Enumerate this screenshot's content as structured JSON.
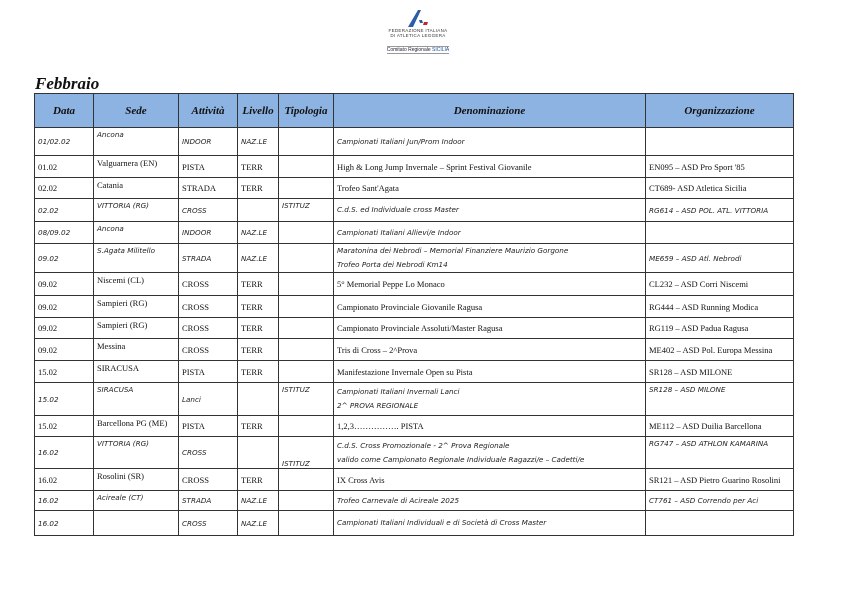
{
  "logo": {
    "line1": "FEDERAZIONE ITALIANA",
    "line2": "DI ATLETICA LEGGERA",
    "line3a": "Comitato Regionale",
    "line3b": "SICILIA"
  },
  "month": "Febbraio",
  "table": {
    "headers": [
      "Data",
      "Sede",
      "Attività",
      "Livello",
      "Tipologia",
      "Denominazione",
      "Organizzazione"
    ],
    "header_color": "#8db3e2",
    "rows": [
      {
        "italic": true,
        "data": "01/02.02",
        "sede": "Ancona",
        "attivita": "INDOOR",
        "livello": "NAZ.LE",
        "tipologia": "",
        "denominazione": [
          "Campionati Italiani Jun/Prom Indoor"
        ],
        "organizzazione": ""
      },
      {
        "italic": false,
        "data": "01.02",
        "sede": "Valguarnera (EN)",
        "attivita": "PISTA",
        "livello": "TERR",
        "tipologia": "",
        "denominazione": [
          "High & Long Jump Invernale – Sprint Festival Giovanile"
        ],
        "organizzazione": "EN095 – ASD Pro Sport '85"
      },
      {
        "italic": false,
        "data": "02.02",
        "sede": "Catania",
        "attivita": "STRADA",
        "livello": "TERR",
        "tipologia": "",
        "denominazione": [
          "Trofeo Sant'Agata"
        ],
        "organizzazione": "CT689- ASD Atletica Sicilia"
      },
      {
        "italic": true,
        "data": "02.02",
        "sede": "VITTORIA (RG)",
        "attivita": "CROSS",
        "livello": "",
        "tipologia": "ISTITUZ",
        "denominazione": [
          "C.d.S. ed Individuale cross Master"
        ],
        "organizzazione": "RG614 – ASD POL. ATL. VITTORIA"
      },
      {
        "italic": true,
        "data": "08/09.02",
        "sede": "Ancona",
        "attivita": "INDOOR",
        "livello": "NAZ.LE",
        "tipologia": "",
        "denominazione": [
          "Campionati Italiani Allievi/e Indoor"
        ],
        "organizzazione": ""
      },
      {
        "italic": true,
        "data": "09.02",
        "sede": "S.Agata Militello",
        "attivita": "STRADA",
        "livello": "NAZ.LE",
        "tipologia": "",
        "denominazione": [
          "Maratonina dei Nebrodi – Memorial Finanziere Maurizio Gorgone",
          "Trofeo Porta dei Nebrodi Km14"
        ],
        "organizzazione": "ME659 – ASD Atl. Nebrodi"
      },
      {
        "italic": false,
        "data": "09.02",
        "sede": "Niscemi (CL)",
        "attivita": "CROSS",
        "livello": "TERR",
        "tipologia": "",
        "denominazione": [
          "5° Memorial Peppe Lo Monaco"
        ],
        "organizzazione": "CL232 – ASD Corri Niscemi"
      },
      {
        "italic": false,
        "data": "09.02",
        "sede": "Sampieri (RG)",
        "attivita": "CROSS",
        "livello": "TERR",
        "tipologia": "",
        "denominazione": [
          "Campionato Provinciale Giovanile Ragusa"
        ],
        "organizzazione": "RG444 – ASD Running Modica"
      },
      {
        "italic": false,
        "data": "09.02",
        "sede": "Sampieri (RG)",
        "attivita": "CROSS",
        "livello": "TERR",
        "tipologia": "",
        "denominazione": [
          "Campionato Provinciale Assoluti/Master Ragusa"
        ],
        "organizzazione": "RG119 – ASD Padua Ragusa"
      },
      {
        "italic": false,
        "data": "09.02",
        "sede": "Messina",
        "attivita": "CROSS",
        "livello": "TERR",
        "tipologia": "",
        "denominazione": [
          "Tris di Cross – 2^Prova"
        ],
        "organizzazione": "ME402 – ASD Pol. Europa Messina"
      },
      {
        "italic": false,
        "data": "15.02",
        "sede": "SIRACUSA",
        "attivita": "PISTA",
        "livello": "TERR",
        "tipologia": "",
        "denominazione": [
          "Manifestazione Invernale Open su Pista"
        ],
        "organizzazione": "SR128 – ASD MILONE"
      },
      {
        "italic": true,
        "data": "15.02",
        "sede": "SIRACUSA",
        "attivita": "Lanci",
        "livello": "",
        "tipologia": "ISTITUZ",
        "denominazione": [
          "Campionati Italiani Invernali Lanci",
          "2^ PROVA REGIONALE"
        ],
        "organizzazione": "SR128 – ASD MILONE"
      },
      {
        "italic": false,
        "data": "15.02",
        "sede": "Barcellona PG (ME)",
        "attivita": "PISTA",
        "livello": "TERR",
        "tipologia": "",
        "denominazione": [
          "1,2,3……………. PISTA"
        ],
        "organizzazione": "ME112 – ASD Duilia Barcellona"
      },
      {
        "italic": true,
        "data": "16.02",
        "sede": "VITTORIA (RG)",
        "attivita": "CROSS",
        "livello": "",
        "tipologia": "ISTITUZ",
        "denominazione": [
          "C.d.S. Cross Promozionale - 2^ Prova Regionale",
          "valido come Campionato Regionale Individuale Ragazzi/e – Cadetti/e"
        ],
        "organizzazione": "RG747 – ASD ATHLON KAMARINA"
      },
      {
        "italic": false,
        "data": "16.02",
        "sede": "Rosolini (SR)",
        "attivita": "CROSS",
        "livello": "TERR",
        "tipologia": "",
        "denominazione": [
          "IX Cross Avis"
        ],
        "organizzazione": "SR121 – ASD Pietro Guarino Rosolini"
      },
      {
        "italic": true,
        "data": "16.02",
        "sede": "Acireale (CT)",
        "attivita": "STRADA",
        "livello": "NAZ.LE",
        "tipologia": "",
        "denominazione": [
          "Trofeo Carnevale di Acireale 2025"
        ],
        "organizzazione": "CT761 – ASD Correndo per Aci"
      },
      {
        "italic": true,
        "data": "16.02",
        "sede": "",
        "attivita": "CROSS",
        "livello": "NAZ.LE",
        "tipologia": "",
        "denominazione": [
          "Campionati Italiani Individuali e di Società di Cross Master"
        ],
        "organizzazione": ""
      }
    ]
  }
}
